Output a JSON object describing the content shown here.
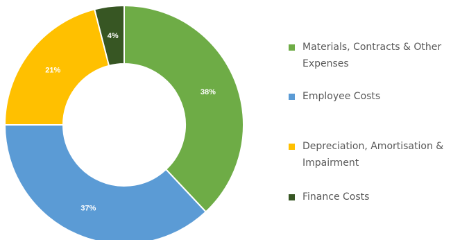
{
  "chart_data": {
    "type": "pie",
    "variant": "donut",
    "slices": [
      {
        "label": "Materials, Contracts & Other Expenses",
        "legend_lines": [
          "Materials, Contracts & Other",
          "Expenses"
        ],
        "value": 38,
        "value_label": "38%",
        "color": "#6eac46"
      },
      {
        "label": "Employee Costs",
        "legend_lines": [
          "Employee Costs"
        ],
        "value": 37,
        "value_label": "37%",
        "color": "#5b9bd5"
      },
      {
        "label": "Depreciation, Amortisation & Impairment",
        "legend_lines": [
          "Depreciation, Amortisation &",
          "Impairment"
        ],
        "value": 21,
        "value_label": "21%",
        "color": "#ffc000"
      },
      {
        "label": "Finance Costs",
        "legend_lines": [
          "Finance Costs"
        ],
        "value": 4,
        "value_label": "4%",
        "color": "#375623"
      }
    ],
    "legend_position": "right"
  }
}
